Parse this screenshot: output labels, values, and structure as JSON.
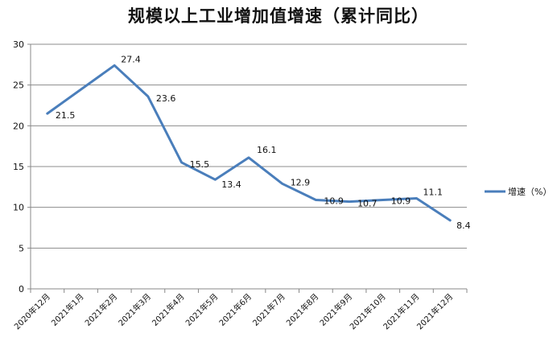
{
  "chart_data": {
    "type": "line",
    "title": "规模以上工业增加值增速（累计同比）",
    "categories": [
      "2020年12月",
      "2021年1月",
      "2021年2月",
      "2021年3月",
      "2021年4月",
      "2021年5月",
      "2021年6月",
      "2021年7月",
      "2021年8月",
      "2021年9月",
      "2021年10月",
      "2021年11月",
      "2021年12月"
    ],
    "series": [
      {
        "name": "增速（%）",
        "values": [
          21.5,
          null,
          27.4,
          23.6,
          15.5,
          13.4,
          16.1,
          12.9,
          10.9,
          10.7,
          10.9,
          11.1,
          8.4
        ],
        "color": "#4a7ebb"
      }
    ],
    "y_ticks": [
      "0",
      "5",
      "10",
      "15",
      "20",
      "25",
      "30"
    ],
    "ylim": [
      0,
      30
    ],
    "grid": true,
    "legend_position": "right"
  }
}
